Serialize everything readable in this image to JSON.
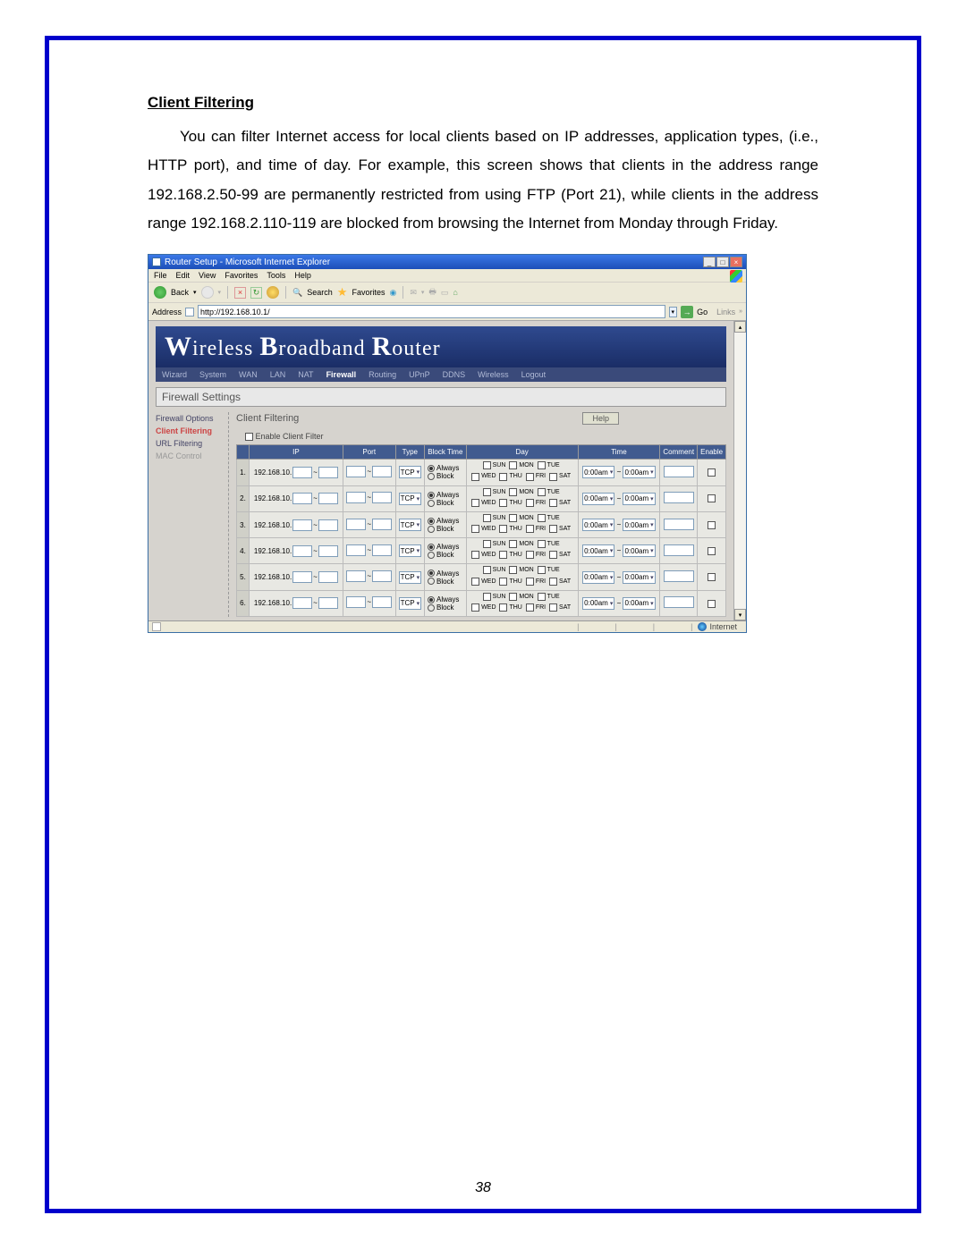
{
  "doc": {
    "heading": "Client Filtering",
    "body": "You can filter Internet access for local clients based on IP addresses, application types, (i.e., HTTP port), and time of day. For example, this screen shows that clients in the address range 192.168.2.50-99 are permanently restricted from using FTP (Port 21), while clients in the address range 192.168.2.110-119 are blocked from browsing the Internet from Monday through Friday.",
    "page_number": "38"
  },
  "window": {
    "title": "Router Setup - Microsoft Internet Explorer",
    "menus": [
      "File",
      "Edit",
      "View",
      "Favorites",
      "Tools",
      "Help"
    ],
    "toolbar": {
      "back": "Back",
      "search": "Search",
      "favorites": "Favorites"
    },
    "addressbar": {
      "label": "Address",
      "value": "http://192.168.10.1/",
      "go": "Go",
      "links": "Links"
    },
    "statusbar": {
      "zone": "Internet"
    }
  },
  "router": {
    "banner": {
      "w": "W",
      "ireless": "ireless ",
      "b": "B",
      "roadband": "roadband ",
      "r": "R",
      "outer": "outer"
    },
    "nav": [
      "Wizard",
      "System",
      "WAN",
      "LAN",
      "NAT",
      "Firewall",
      "Routing",
      "UPnP",
      "DDNS",
      "Wireless",
      "Logout"
    ],
    "nav_active": "Firewall",
    "section": "Firewall Settings",
    "side": [
      {
        "label": "Firewall Options",
        "state": ""
      },
      {
        "label": "Client Filtering",
        "state": "active"
      },
      {
        "label": "URL Filtering",
        "state": ""
      },
      {
        "label": "MAC Control",
        "state": "dim"
      }
    ],
    "panel_title": "Client Filtering",
    "help": "Help",
    "enable_label": "Enable Client Filter",
    "columns": [
      "IP",
      "Port",
      "Type",
      "Block Time",
      "Day",
      "Time",
      "Comment",
      "Enable"
    ],
    "ip_prefix": "192.168.10.",
    "ip_sep": "~",
    "port_sep": "~",
    "type_options": "TCP",
    "block_always": "Always",
    "block_block": "Block",
    "days_row1": [
      "SUN",
      "MON",
      "TUE"
    ],
    "days_row2": [
      "WED",
      "THU",
      "FRI",
      "SAT"
    ],
    "time_default": "0:00am",
    "time_sep": "~",
    "rows": [
      1,
      2,
      3,
      4,
      5,
      6
    ]
  }
}
